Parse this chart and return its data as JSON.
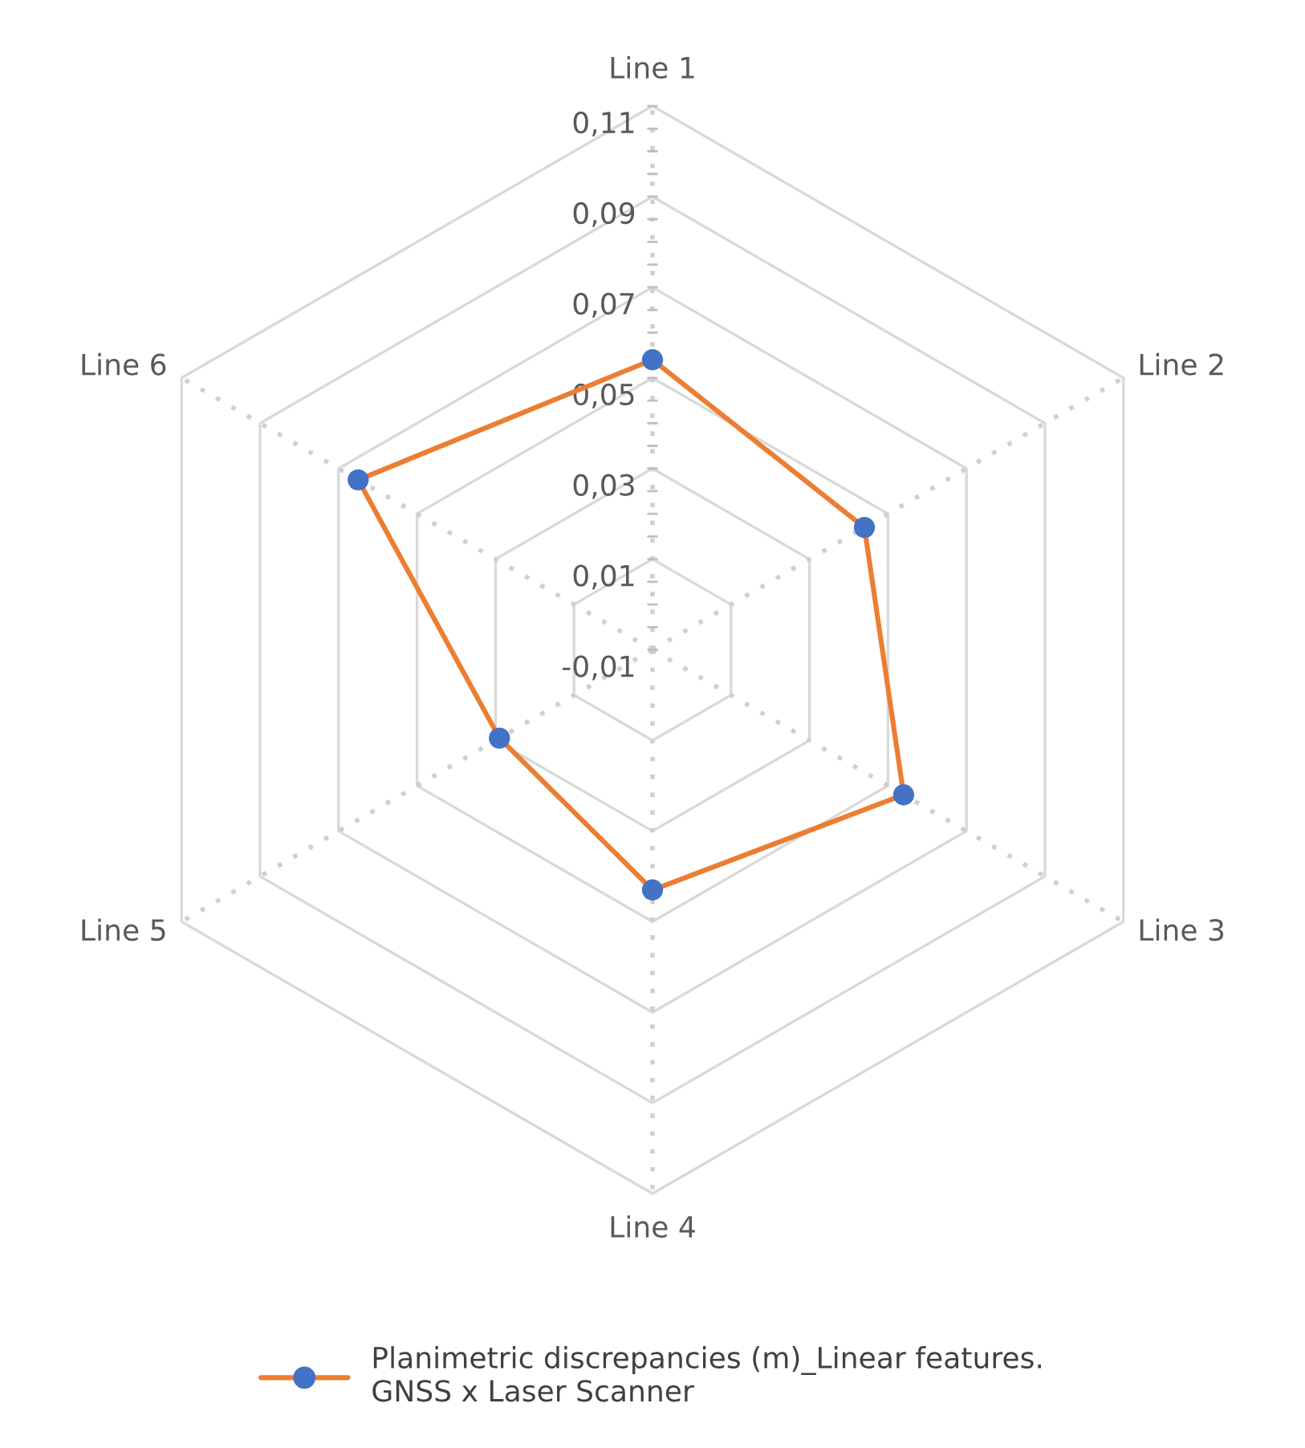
{
  "chart_data": {
    "type": "radar",
    "categories": [
      "Line 1",
      "Line 2",
      "Line 3",
      "Line 4",
      "Line 5",
      "Line 6"
    ],
    "series": [
      {
        "name": "Planimetric discrepancies (m)_Linear features.\nGNSS x Laser Scanner",
        "color": "#ed7d31",
        "colors": [
          "#4472c4",
          "#4472c4",
          "#4472c4",
          "#4472c4",
          "#4472c4",
          "#4472c4"
        ],
        "values": [
          0.054,
          0.044,
          0.054,
          0.043,
          0.029,
          0.065
        ]
      }
    ],
    "ylim": [
      -0.01,
      0.11
    ],
    "yticks": [
      {
        "value": -0.01,
        "label": "-0,01"
      },
      {
        "value": 0.01,
        "label": "0,01"
      },
      {
        "value": 0.03,
        "label": "0,03"
      },
      {
        "value": 0.05,
        "label": "0,05"
      },
      {
        "value": 0.07,
        "label": "0,07"
      },
      {
        "value": 0.09,
        "label": "0,09"
      },
      {
        "value": 0.11,
        "label": "0,11"
      }
    ],
    "grid": true,
    "legend": "bottom",
    "marker": "circle",
    "line_style": "solid"
  }
}
